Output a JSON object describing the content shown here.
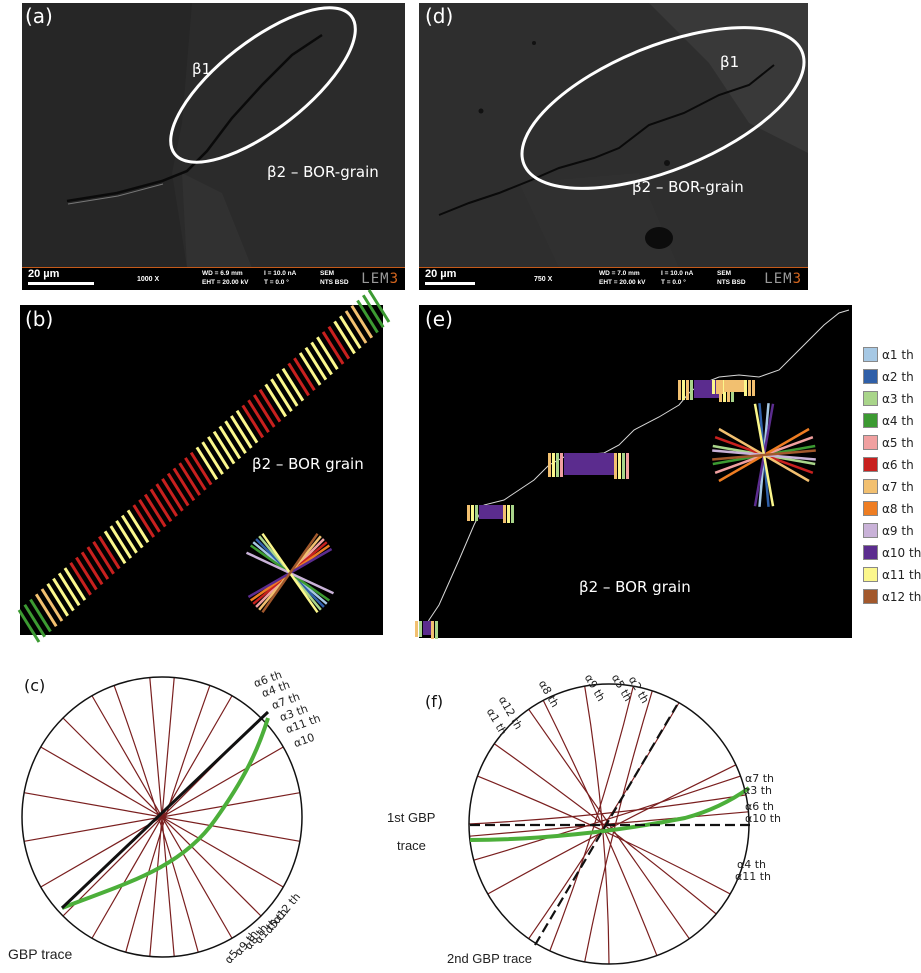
{
  "panels": {
    "a": {
      "label": "(a)",
      "beta1": "β1",
      "beta2": "β2 – BOR-grain",
      "infobar": {
        "scale": "20 µm",
        "mag": "1000 X",
        "wd": "WD = 6.9 mm",
        "eht": "EHT = 20.00 kV",
        "i": "I = 10.0 nA",
        "t": "T = 0.0 °",
        "det1": "SEM",
        "det2": "NTS BSD",
        "logo_a": "LEM",
        "logo_b": "3"
      }
    },
    "d": {
      "label": "(d)",
      "beta1": "β1",
      "beta2": "β2 – BOR-grain",
      "infobar": {
        "scale": "20 µm",
        "mag": "750 X",
        "wd": "WD = 7.0 mm",
        "eht": "EHT = 20.00 kV",
        "i": "I = 10.0 nA",
        "t": "T = 0.0 °",
        "det1": "SEM",
        "det2": "NTS BSD",
        "logo_a": "LEM",
        "logo_b": "3"
      }
    },
    "b": {
      "label": "(b)",
      "beta2": "β2 – BOR grain"
    },
    "e": {
      "label": "(e)",
      "beta2": "β2 – BOR grain"
    },
    "c": {
      "label": "(c)",
      "trace": "GBP trace",
      "labels_top": [
        "α6 th",
        "α4 th",
        "α7 th",
        "α3 th",
        "α11 th",
        "α10"
      ],
      "labels_bottom": [
        "α12 th",
        "α5 th",
        "α1 th",
        "α8 th",
        "α9 th",
        "α5"
      ]
    },
    "f": {
      "label": "(f)",
      "trace1_a": "1st GBP",
      "trace1_b": "trace",
      "trace2": "2nd GBP trace",
      "labels_top": [
        "α1 th",
        "α12 th",
        "α8 th",
        "α9 th",
        "α5 th",
        "α2 th"
      ],
      "labels_right": [
        "α7 th",
        "α3 th",
        "α6 th",
        "α10 th",
        "α4 th",
        "α11 th"
      ]
    }
  },
  "legend": [
    {
      "label": "α1 th",
      "color": "#a6c8e4"
    },
    {
      "label": "α2 th",
      "color": "#2f5fa8"
    },
    {
      "label": "α3 th",
      "color": "#a9d58a"
    },
    {
      "label": "α4 th",
      "color": "#3c9a32"
    },
    {
      "label": "α5 th",
      "color": "#f0a0a0"
    },
    {
      "label": "α6 th",
      "color": "#c8201e"
    },
    {
      "label": "α7 th",
      "color": "#f2c070"
    },
    {
      "label": "α8 th",
      "color": "#ee7d22"
    },
    {
      "label": "α9 th",
      "color": "#c9b2d8"
    },
    {
      "label": "α10 th",
      "color": "#5b2c8e"
    },
    {
      "label": "α11 th",
      "color": "#fbf78c"
    },
    {
      "label": "α12 th",
      "color": "#a2582c"
    }
  ]
}
